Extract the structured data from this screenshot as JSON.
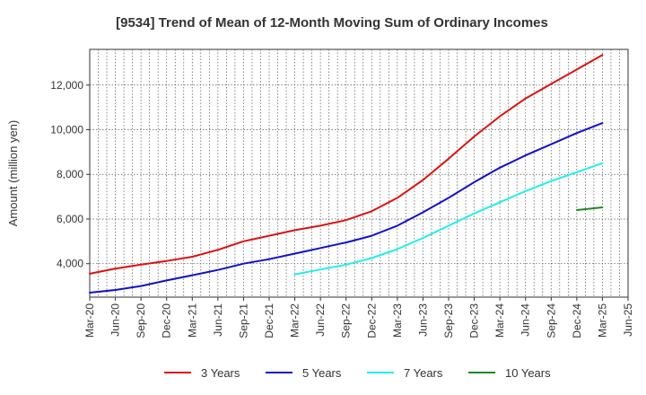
{
  "chart_data": {
    "type": "line",
    "title": "[9534]  Trend of Mean of 12-Month Moving Sum of Ordinary Incomes",
    "xlabel": "",
    "ylabel": "Amount (million yen)",
    "x_ticks": [
      "Mar-20",
      "Jun-20",
      "Sep-20",
      "Dec-20",
      "Mar-21",
      "Jun-21",
      "Sep-21",
      "Dec-21",
      "Mar-22",
      "Jun-22",
      "Sep-22",
      "Dec-22",
      "Mar-23",
      "Jun-23",
      "Sep-23",
      "Dec-23",
      "Mar-24",
      "Jun-24",
      "Sep-24",
      "Dec-24",
      "Mar-25",
      "Jun-25"
    ],
    "y_ticks": [
      4000,
      6000,
      8000,
      10000,
      12000
    ],
    "y_tick_labels": [
      "4,000",
      "6,000",
      "8,000",
      "10,000",
      "12,000"
    ],
    "ylim": [
      2500,
      13600
    ],
    "grid": true,
    "legend_position": "bottom",
    "series": [
      {
        "name": "3 Years",
        "color": "#dd1111",
        "x": [
          "Mar-20",
          "Jun-20",
          "Sep-20",
          "Dec-20",
          "Mar-21",
          "Jun-21",
          "Sep-21",
          "Dec-21",
          "Mar-22",
          "Jun-22",
          "Sep-22",
          "Dec-22",
          "Mar-23",
          "Jun-23",
          "Sep-23",
          "Dec-23",
          "Mar-24",
          "Jun-24",
          "Sep-24",
          "Dec-24",
          "Mar-25"
        ],
        "values": [
          3550,
          3780,
          3960,
          4120,
          4310,
          4620,
          5000,
          5250,
          5500,
          5700,
          5950,
          6350,
          6950,
          7750,
          8700,
          9700,
          10600,
          11400,
          12050,
          12700,
          13350
        ]
      },
      {
        "name": "5 Years",
        "color": "#1111cc",
        "x": [
          "Mar-20",
          "Jun-20",
          "Sep-20",
          "Dec-20",
          "Mar-21",
          "Jun-21",
          "Sep-21",
          "Dec-21",
          "Mar-22",
          "Jun-22",
          "Sep-22",
          "Dec-22",
          "Mar-23",
          "Jun-23",
          "Sep-23",
          "Dec-23",
          "Mar-24",
          "Jun-24",
          "Sep-24",
          "Dec-24",
          "Mar-25"
        ],
        "values": [
          2700,
          2820,
          3000,
          3250,
          3480,
          3720,
          4000,
          4200,
          4450,
          4700,
          4950,
          5250,
          5700,
          6300,
          6950,
          7650,
          8300,
          8850,
          9350,
          9850,
          10300
        ]
      },
      {
        "name": "7 Years",
        "color": "#22eeee",
        "x": [
          "Mar-22",
          "Jun-22",
          "Sep-22",
          "Dec-22",
          "Mar-23",
          "Jun-23",
          "Sep-23",
          "Dec-23",
          "Mar-24",
          "Jun-24",
          "Sep-24",
          "Dec-24",
          "Mar-25"
        ],
        "values": [
          3520,
          3740,
          3950,
          4250,
          4650,
          5150,
          5700,
          6250,
          6750,
          7250,
          7700,
          8100,
          8500
        ]
      },
      {
        "name": "10 Years",
        "color": "#228822",
        "x": [
          "Dec-24",
          "Mar-25"
        ],
        "values": [
          6400,
          6520
        ]
      }
    ]
  }
}
